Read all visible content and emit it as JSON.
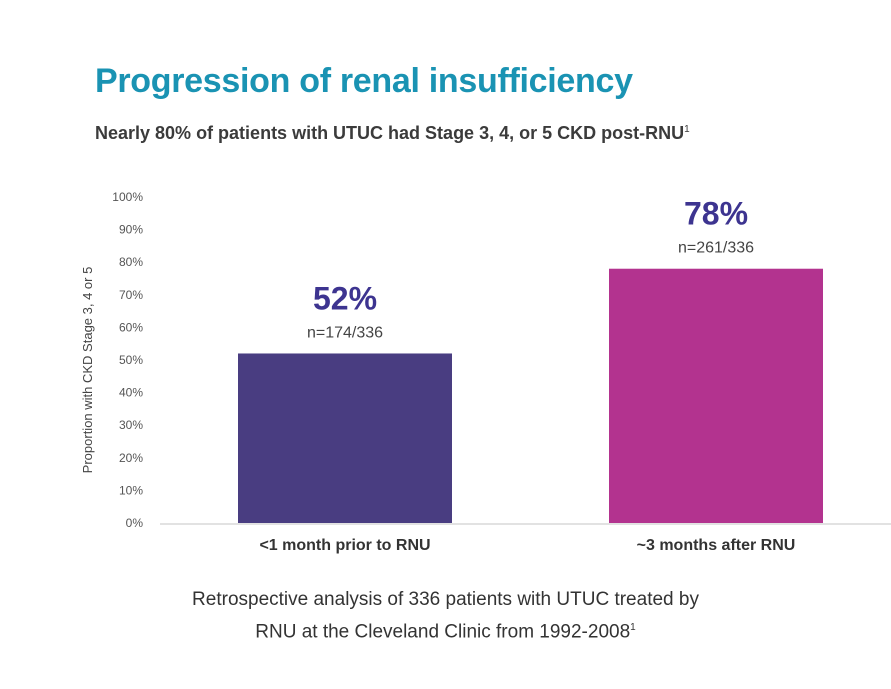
{
  "title": "Progression of renal insufficiency",
  "subtitle": "Nearly 80% of patients with UTUC had Stage 3, 4, or 5 CKD post-RNU",
  "subtitle_ref": "1",
  "footnote": {
    "line1": "Retrospective analysis of 336 patients with UTUC treated by",
    "line2": "RNU at the Cleveland Clinic from 1992-2008",
    "ref": "1"
  },
  "colors": {
    "title": "#1a93b3",
    "bar1": "#493d81",
    "bar2": "#b3338f",
    "value_label": "#3d3490",
    "axis_text": "#555555"
  },
  "chart_data": {
    "type": "bar",
    "categories": [
      "<1 month prior to RNU",
      "~3 months after RNU"
    ],
    "values": [
      52,
      78
    ],
    "value_labels": [
      "52%",
      "78%"
    ],
    "n_labels": [
      "n=174/336",
      "n=261/336"
    ],
    "ylabel": "Proportion with CKD Stage 3, 4 or 5",
    "ylim": [
      0,
      100
    ],
    "yticks": [
      "0%",
      "10%",
      "20%",
      "30%",
      "40%",
      "50%",
      "60%",
      "70%",
      "80%",
      "90%",
      "100%"
    ],
    "grid": false,
    "legend": false
  }
}
